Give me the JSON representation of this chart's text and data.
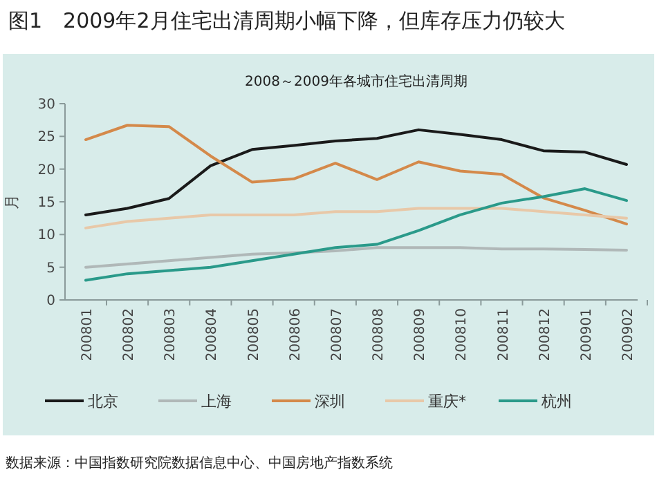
{
  "chart_data": {
    "type": "line",
    "title": "2008～2009年各城市住宅出清周期",
    "subtitle": "图1　2009年2月住宅出清周期小幅下降，但库存压力仍较大",
    "ylabel": "月",
    "annotations": [
      "数据来源：中国指数研究院数据信息中心、中国房地产指数系统"
    ],
    "categories": [
      "200801",
      "200802",
      "200803",
      "200804",
      "200805",
      "200806",
      "200807",
      "200808",
      "200809",
      "200810",
      "200811",
      "200812",
      "200901",
      "200902"
    ],
    "series": [
      {
        "name": "北京",
        "color": "#1a1a1a",
        "values": [
          13,
          14,
          15.5,
          20.5,
          23,
          23.6,
          24.3,
          24.7,
          26,
          25.3,
          24.5,
          22.8,
          22.6,
          20.7
        ]
      },
      {
        "name": "上海",
        "color": "#b0b8b8",
        "values": [
          5,
          5.5,
          6,
          6.5,
          7,
          7.2,
          7.5,
          8,
          8,
          8,
          7.8,
          7.8,
          7.7,
          7.6
        ]
      },
      {
        "name": "深圳",
        "color": "#d4894a",
        "values": [
          24.5,
          26.7,
          26.5,
          22,
          18,
          18.5,
          20.9,
          18.4,
          21.1,
          19.7,
          19.2,
          15.6,
          13.7,
          11.6
        ]
      },
      {
        "name": "重庆*",
        "color": "#e8c8a8",
        "values": [
          11,
          12,
          12.5,
          13,
          13,
          13,
          13.5,
          13.5,
          14,
          14,
          14,
          13.5,
          13,
          12.5
        ]
      },
      {
        "name": "杭州",
        "color": "#2a9a8a",
        "values": [
          3,
          4,
          4.5,
          5,
          6,
          7,
          8,
          8.5,
          10.6,
          13,
          14.8,
          15.8,
          17,
          15.2
        ]
      }
    ],
    "ylim": [
      0,
      30
    ],
    "yticks": [
      0,
      5,
      10,
      15,
      20,
      25,
      30
    ],
    "grid": false,
    "legend": "bottom"
  }
}
